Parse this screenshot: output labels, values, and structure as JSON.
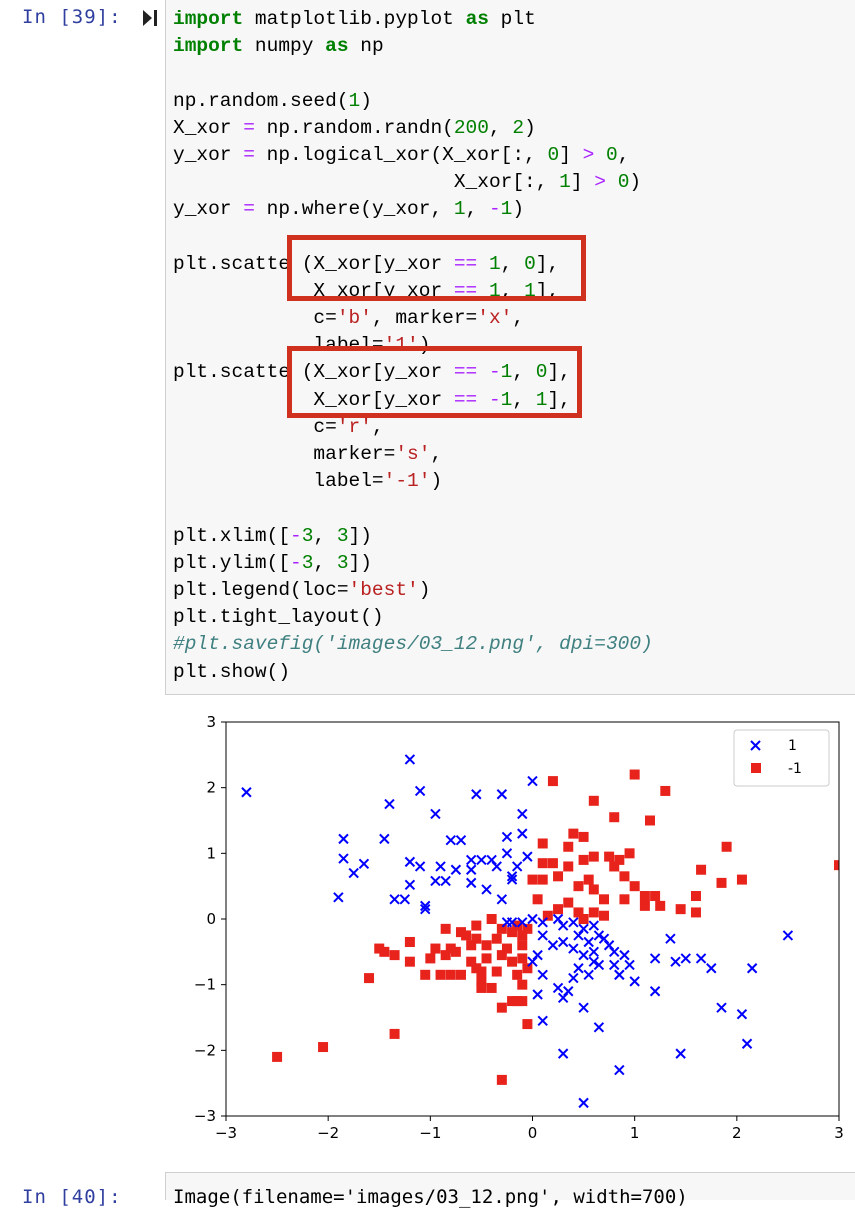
{
  "cell": {
    "prompt": "In [39]:",
    "lines": [
      [
        [
          "kw",
          "import"
        ],
        [
          "t",
          " matplotlib.pyplot "
        ],
        [
          "kw",
          "as"
        ],
        [
          "t",
          " plt"
        ]
      ],
      [
        [
          "kw",
          "import"
        ],
        [
          "t",
          " numpy "
        ],
        [
          "kw",
          "as"
        ],
        [
          "t",
          " np"
        ]
      ],
      [],
      [
        [
          "t",
          "np.random.seed("
        ],
        [
          "num",
          "1"
        ],
        [
          "t",
          ")"
        ]
      ],
      [
        [
          "t",
          "X_xor "
        ],
        [
          "op",
          "="
        ],
        [
          "t",
          " np.random.randn("
        ],
        [
          "num",
          "200"
        ],
        [
          "t",
          ", "
        ],
        [
          "num",
          "2"
        ],
        [
          "t",
          ")"
        ]
      ],
      [
        [
          "t",
          "y_xor "
        ],
        [
          "op",
          "="
        ],
        [
          "t",
          " np.logical_xor(X_xor[:, "
        ],
        [
          "num",
          "0"
        ],
        [
          "t",
          "] "
        ],
        [
          "op",
          ">"
        ],
        [
          "t",
          " "
        ],
        [
          "num",
          "0"
        ],
        [
          "t",
          ","
        ]
      ],
      [
        [
          "t",
          "                        X_xor[:, "
        ],
        [
          "num",
          "1"
        ],
        [
          "t",
          "] "
        ],
        [
          "op",
          ">"
        ],
        [
          "t",
          " "
        ],
        [
          "num",
          "0"
        ],
        [
          "t",
          ")"
        ]
      ],
      [
        [
          "t",
          "y_xor "
        ],
        [
          "op",
          "="
        ],
        [
          "t",
          " np.where(y_xor, "
        ],
        [
          "num",
          "1"
        ],
        [
          "t",
          ", "
        ],
        [
          "op",
          "-"
        ],
        [
          "num",
          "1"
        ],
        [
          "t",
          ")"
        ]
      ],
      [],
      [
        [
          "t",
          "plt.scatte (X_xor[y_xor "
        ],
        [
          "op",
          "=="
        ],
        [
          "t",
          " "
        ],
        [
          "num",
          "1"
        ],
        [
          "t",
          ", "
        ],
        [
          "num",
          "0"
        ],
        [
          "t",
          "],"
        ]
      ],
      [
        [
          "t",
          "            X xor[y xor "
        ],
        [
          "op",
          "=="
        ],
        [
          "t",
          " "
        ],
        [
          "num",
          "1"
        ],
        [
          "t",
          ", "
        ],
        [
          "num",
          "1"
        ],
        [
          "t",
          "],"
        ]
      ],
      [
        [
          "t",
          "            c="
        ],
        [
          "str",
          "'b'"
        ],
        [
          "t",
          ", marker="
        ],
        [
          "str",
          "'x'"
        ],
        [
          "t",
          ","
        ]
      ],
      [
        [
          "t",
          "            label="
        ],
        [
          "str",
          "'1'"
        ],
        [
          "t",
          ")"
        ]
      ],
      [
        [
          "t",
          "plt.scatte (X_xor[y_xor "
        ],
        [
          "op",
          "=="
        ],
        [
          "t",
          " "
        ],
        [
          "op",
          "-"
        ],
        [
          "num",
          "1"
        ],
        [
          "t",
          ", "
        ],
        [
          "num",
          "0"
        ],
        [
          "t",
          "],"
        ]
      ],
      [
        [
          "t",
          "            X_xor[y_xor "
        ],
        [
          "op",
          "=="
        ],
        [
          "t",
          " "
        ],
        [
          "op",
          "-"
        ],
        [
          "num",
          "1"
        ],
        [
          "t",
          ", "
        ],
        [
          "num",
          "1"
        ],
        [
          "t",
          "],"
        ]
      ],
      [
        [
          "t",
          "            c="
        ],
        [
          "str",
          "'r'"
        ],
        [
          "t",
          ","
        ]
      ],
      [
        [
          "t",
          "            marker="
        ],
        [
          "str",
          "'s'"
        ],
        [
          "t",
          ","
        ]
      ],
      [
        [
          "t",
          "            label="
        ],
        [
          "str",
          "'-1'"
        ],
        [
          "t",
          ")"
        ]
      ],
      [],
      [
        [
          "t",
          "plt.xlim(["
        ],
        [
          "op",
          "-"
        ],
        [
          "num",
          "3"
        ],
        [
          "t",
          ", "
        ],
        [
          "num",
          "3"
        ],
        [
          "t",
          "])"
        ]
      ],
      [
        [
          "t",
          "plt.ylim(["
        ],
        [
          "op",
          "-"
        ],
        [
          "num",
          "3"
        ],
        [
          "t",
          ", "
        ],
        [
          "num",
          "3"
        ],
        [
          "t",
          "])"
        ]
      ],
      [
        [
          "t",
          "plt.legend(loc="
        ],
        [
          "str",
          "'best'"
        ],
        [
          "t",
          ")"
        ]
      ],
      [
        [
          "t",
          "plt.tight_layout()"
        ]
      ],
      [
        [
          "cm",
          "#plt.savefig('images/03_12.png', dpi=300)"
        ]
      ],
      [
        [
          "t",
          "plt.show()"
        ]
      ]
    ]
  },
  "next_cell": {
    "prompt": "In [40]:",
    "code": "Image(filename='images/03_12.png', width=700)"
  },
  "chart_data": {
    "type": "scatter",
    "xlim": [
      -3,
      3
    ],
    "ylim": [
      -3,
      3
    ],
    "xticks": [
      -3,
      -2,
      -1,
      0,
      1,
      2,
      3
    ],
    "yticks": [
      -3,
      -2,
      -1,
      0,
      1,
      2,
      3
    ],
    "xtick_labels": [
      "−3",
      "−2",
      "−1",
      "0",
      "1",
      "2",
      "3"
    ],
    "ytick_labels": [
      "−3",
      "−2",
      "−1",
      "0",
      "1",
      "2",
      "3"
    ],
    "grid": false,
    "legend": "top-right",
    "series": [
      {
        "name": "1",
        "marker": "x",
        "color": "#0000ff",
        "points": [
          [
            -2.8,
            1.93
          ],
          [
            -1.2,
            2.43
          ],
          [
            -1.1,
            1.95
          ],
          [
            -1.4,
            1.75
          ],
          [
            -0.95,
            1.6
          ],
          [
            -1.85,
            1.22
          ],
          [
            -1.45,
            1.22
          ],
          [
            -1.85,
            0.92
          ],
          [
            -1.75,
            0.7
          ],
          [
            -1.65,
            0.84
          ],
          [
            -1.9,
            0.33
          ],
          [
            -1.35,
            0.3
          ],
          [
            -1.25,
            0.3
          ],
          [
            -1.2,
            0.52
          ],
          [
            -1.2,
            0.87
          ],
          [
            -1.1,
            0.8
          ],
          [
            -1.05,
            0.15
          ],
          [
            -1.05,
            0.2
          ],
          [
            -0.9,
            0.8
          ],
          [
            -0.95,
            0.58
          ],
          [
            -0.85,
            0.58
          ],
          [
            -0.75,
            0.75
          ],
          [
            -0.8,
            1.2
          ],
          [
            -0.7,
            1.2
          ],
          [
            -0.55,
            1.9
          ],
          [
            -0.3,
            1.9
          ],
          [
            -0.1,
            1.6
          ],
          [
            0.0,
            2.1
          ],
          [
            -0.1,
            1.3
          ],
          [
            -0.25,
            1.25
          ],
          [
            -0.25,
            1.0
          ],
          [
            -0.4,
            0.9
          ],
          [
            -0.5,
            0.9
          ],
          [
            -0.6,
            0.9
          ],
          [
            -0.6,
            0.75
          ],
          [
            -0.6,
            0.55
          ],
          [
            -0.45,
            0.45
          ],
          [
            -0.35,
            0.8
          ],
          [
            -0.15,
            0.8
          ],
          [
            -0.2,
            0.6
          ],
          [
            -0.3,
            0.3
          ],
          [
            -0.2,
            0.65
          ],
          [
            -0.05,
            0.95
          ],
          [
            -0.2,
            -0.05
          ],
          [
            -0.25,
            -0.05
          ],
          [
            -0.1,
            -0.05
          ],
          [
            0.0,
            0.0
          ],
          [
            0.1,
            -0.05
          ],
          [
            0.25,
            0.0
          ],
          [
            0.3,
            -0.1
          ],
          [
            0.4,
            -0.05
          ],
          [
            0.45,
            -0.25
          ],
          [
            0.5,
            -0.15
          ],
          [
            0.55,
            -0.35
          ],
          [
            0.6,
            -0.1
          ],
          [
            0.65,
            -0.25
          ],
          [
            0.7,
            -0.3
          ],
          [
            0.75,
            -0.4
          ],
          [
            0.8,
            -0.5
          ],
          [
            0.9,
            -0.55
          ],
          [
            0.95,
            -0.7
          ],
          [
            1.0,
            -0.95
          ],
          [
            0.85,
            -0.85
          ],
          [
            0.6,
            -0.5
          ],
          [
            0.5,
            -0.55
          ],
          [
            0.4,
            -0.45
          ],
          [
            0.3,
            -0.35
          ],
          [
            0.2,
            -0.4
          ],
          [
            0.1,
            -0.25
          ],
          [
            0.05,
            -0.55
          ],
          [
            0.0,
            -0.65
          ],
          [
            0.1,
            -0.85
          ],
          [
            0.05,
            -1.15
          ],
          [
            0.25,
            -1.05
          ],
          [
            0.35,
            -1.1
          ],
          [
            0.4,
            -0.9
          ],
          [
            0.45,
            -0.75
          ],
          [
            0.55,
            -0.85
          ],
          [
            0.6,
            -0.65
          ],
          [
            0.65,
            -0.7
          ],
          [
            0.8,
            -0.7
          ],
          [
            0.85,
            -0.85
          ],
          [
            1.2,
            -0.6
          ],
          [
            1.35,
            -0.3
          ],
          [
            1.4,
            -0.65
          ],
          [
            1.5,
            -0.6
          ],
          [
            1.65,
            -0.6
          ],
          [
            1.75,
            -0.75
          ],
          [
            2.15,
            -0.75
          ],
          [
            2.5,
            -0.25
          ],
          [
            1.2,
            -1.1
          ],
          [
            0.5,
            -1.35
          ],
          [
            0.3,
            -1.2
          ],
          [
            0.1,
            -1.55
          ],
          [
            0.65,
            -1.65
          ],
          [
            0.3,
            -2.05
          ],
          [
            0.85,
            -2.3
          ],
          [
            0.5,
            -2.8
          ],
          [
            1.45,
            -2.05
          ],
          [
            1.85,
            -1.35
          ],
          [
            2.05,
            -1.45
          ],
          [
            2.1,
            -1.9
          ]
        ]
      },
      {
        "name": "-1",
        "marker": "s",
        "color": "#e8231c",
        "points": [
          [
            0.2,
            2.1
          ],
          [
            1.0,
            2.2
          ],
          [
            1.3,
            1.95
          ],
          [
            0.6,
            1.8
          ],
          [
            0.8,
            1.55
          ],
          [
            1.15,
            1.5
          ],
          [
            0.4,
            1.3
          ],
          [
            0.5,
            1.25
          ],
          [
            0.1,
            1.15
          ],
          [
            0.35,
            1.1
          ],
          [
            0.5,
            0.9
          ],
          [
            0.6,
            0.95
          ],
          [
            0.75,
            0.95
          ],
          [
            0.85,
            0.9
          ],
          [
            0.95,
            1.0
          ],
          [
            0.8,
            0.8
          ],
          [
            0.9,
            0.65
          ],
          [
            1.0,
            0.5
          ],
          [
            1.1,
            0.35
          ],
          [
            1.2,
            0.35
          ],
          [
            1.25,
            0.2
          ],
          [
            1.65,
            0.75
          ],
          [
            1.9,
            1.1
          ],
          [
            1.85,
            0.55
          ],
          [
            2.05,
            0.6
          ],
          [
            1.6,
            0.35
          ],
          [
            1.45,
            0.15
          ],
          [
            1.6,
            0.1
          ],
          [
            1.1,
            0.2
          ],
          [
            0.9,
            0.3
          ],
          [
            0.7,
            0.3
          ],
          [
            0.6,
            0.45
          ],
          [
            0.55,
            0.6
          ],
          [
            0.45,
            0.5
          ],
          [
            0.35,
            0.8
          ],
          [
            0.25,
            0.65
          ],
          [
            0.2,
            0.85
          ],
          [
            0.1,
            0.85
          ],
          [
            0.1,
            0.6
          ],
          [
            0.0,
            0.6
          ],
          [
            0.05,
            0.3
          ],
          [
            0.15,
            0.05
          ],
          [
            0.25,
            0.15
          ],
          [
            0.35,
            0.25
          ],
          [
            0.45,
            0.1
          ],
          [
            0.5,
            0.0
          ],
          [
            0.6,
            0.1
          ],
          [
            0.7,
            0.05
          ],
          [
            -0.05,
            -0.15
          ],
          [
            -0.1,
            -0.25
          ],
          [
            -0.2,
            -0.2
          ],
          [
            -0.3,
            -0.15
          ],
          [
            -0.35,
            -0.3
          ],
          [
            -0.45,
            -0.4
          ],
          [
            -0.55,
            -0.3
          ],
          [
            -0.6,
            -0.4
          ],
          [
            -0.65,
            -0.25
          ],
          [
            -0.75,
            -0.5
          ],
          [
            -0.8,
            -0.45
          ],
          [
            -0.85,
            -0.55
          ],
          [
            -0.6,
            -0.65
          ],
          [
            -0.55,
            -0.75
          ],
          [
            -0.5,
            -0.8
          ],
          [
            -0.45,
            -0.6
          ],
          [
            -0.35,
            -0.8
          ],
          [
            -0.3,
            -0.55
          ],
          [
            -0.2,
            -0.65
          ],
          [
            -0.15,
            -0.85
          ],
          [
            -0.1,
            -0.6
          ],
          [
            -0.05,
            -0.75
          ],
          [
            -0.1,
            -0.4
          ],
          [
            -0.15,
            -0.1
          ],
          [
            -0.25,
            -0.45
          ],
          [
            -0.4,
            0.0
          ],
          [
            -0.55,
            -0.1
          ],
          [
            -0.7,
            -0.2
          ],
          [
            -0.85,
            -0.15
          ],
          [
            -0.95,
            -0.45
          ],
          [
            -1.0,
            -0.6
          ],
          [
            -1.2,
            -0.35
          ],
          [
            -1.2,
            -0.65
          ],
          [
            -1.35,
            -0.55
          ],
          [
            -1.45,
            -0.5
          ],
          [
            -1.5,
            -0.45
          ],
          [
            -1.6,
            -0.9
          ],
          [
            -1.05,
            -0.85
          ],
          [
            -0.9,
            -0.85
          ],
          [
            -0.8,
            -0.85
          ],
          [
            -0.7,
            -0.85
          ],
          [
            -0.5,
            -1.05
          ],
          [
            -0.5,
            -0.95
          ],
          [
            -0.4,
            -1.05
          ],
          [
            -0.3,
            -1.35
          ],
          [
            -0.2,
            -1.25
          ],
          [
            -0.1,
            -1.25
          ],
          [
            -0.05,
            -1.6
          ],
          [
            -0.1,
            -1.0
          ],
          [
            -0.15,
            -1.25
          ],
          [
            -1.35,
            -1.75
          ],
          [
            -2.05,
            -1.95
          ],
          [
            -2.5,
            -2.1
          ],
          [
            -0.3,
            -2.45
          ],
          [
            3.0,
            0.82
          ]
        ]
      }
    ]
  },
  "colors": {
    "highlight": "#d0311f",
    "prompt": "#303f9f"
  }
}
